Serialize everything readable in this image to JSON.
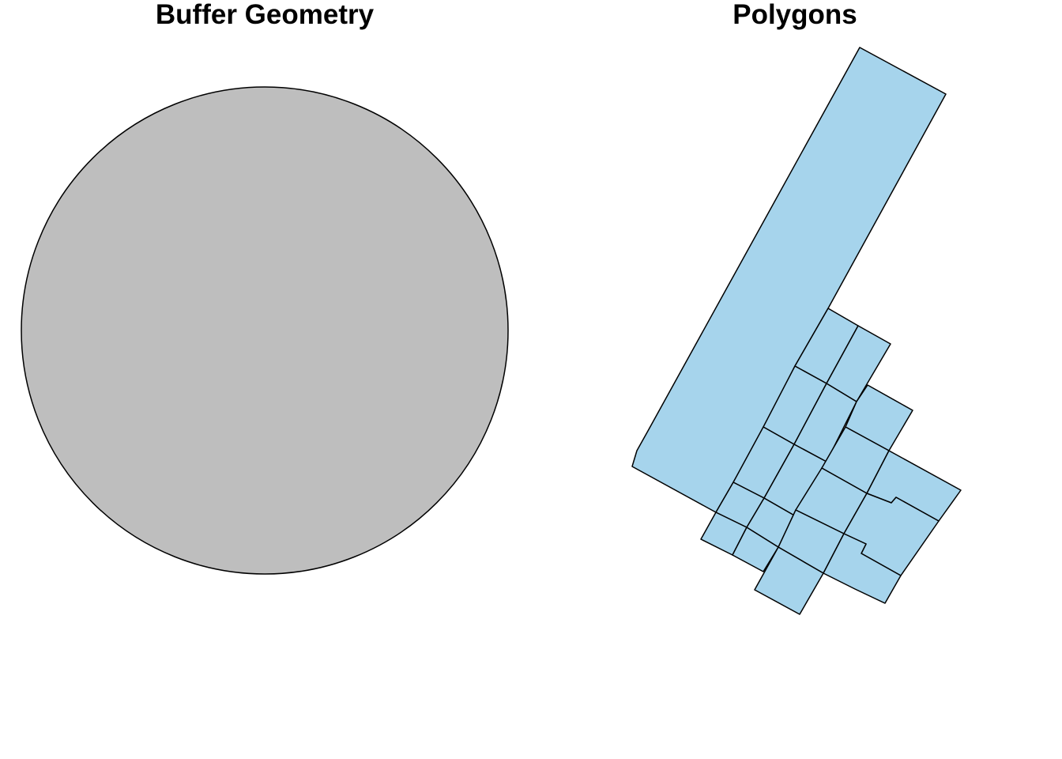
{
  "panels": [
    {
      "title": "Buffer Geometry",
      "fill": "#BEBEBE",
      "stroke": "#000000"
    },
    {
      "title": "Polygons",
      "fill": "#A6D4EC",
      "stroke": "#000000"
    }
  ]
}
